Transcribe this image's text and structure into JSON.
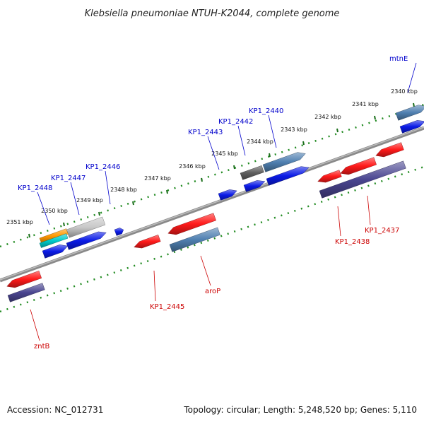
{
  "title": "Klebsiella pneumoniae NTUH-K2044, complete genome",
  "footer": {
    "accession": "Accession: NC_012731",
    "summary": "Topology: circular; Length: 5,248,520 bp; Genes: 5,110"
  },
  "colors": {
    "forward_label": "#0000cc",
    "reverse_label": "#cc0000",
    "backbone": "#808080",
    "tick_track": "#228b22",
    "gene_red": "#ff1a1a",
    "gene_blue": "#0a1ae6",
    "gene_steel": "#4f7fb0",
    "gene_purple": "#4a4590",
    "gene_gray": "#c8c8c8",
    "gene_darkgray": "#606060",
    "gene_orange": "#ff9900",
    "gene_cyan": "#00cccc"
  },
  "kbp_ticks": [
    "2340 kbp",
    "2341 kbp",
    "2342 kbp",
    "2343 kbp",
    "2344 kbp",
    "2345 kbp",
    "2346 kbp",
    "2347 kbp",
    "2348 kbp",
    "2349 kbp",
    "2350 kbp",
    "2351 kbp"
  ],
  "forward_labels": [
    "mtnE",
    "KP1_2440",
    "KP1_2442",
    "KP1_2443",
    "KP1_2446",
    "KP1_2447",
    "KP1_2448"
  ],
  "reverse_labels": [
    "KP1_2437",
    "KP1_2438",
    "aroP",
    "KP1_2445",
    "zntB"
  ]
}
